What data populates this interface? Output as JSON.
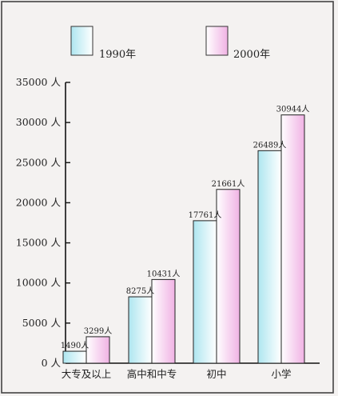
{
  "chart_data": {
    "type": "bar",
    "title": "",
    "xlabel": "",
    "ylabel": "",
    "categories": [
      "大专及以上",
      "高中和中专",
      "初中",
      "小学"
    ],
    "series": [
      {
        "name": "1990年",
        "values": [
          1490,
          8275,
          17761,
          26489
        ],
        "value_labels": [
          "1490人",
          "8275人",
          "17761人",
          "26489人"
        ],
        "color_start": "#aee6f0",
        "color_end": "#ffffff"
      },
      {
        "name": "2000年",
        "values": [
          3299,
          10431,
          21661,
          30944
        ],
        "value_labels": [
          "3299人",
          "10431人",
          "21661人",
          "30944人"
        ],
        "color_start": "#ffffff",
        "color_end": "#f0b2e4"
      }
    ],
    "ylim": [
      0,
      35000
    ],
    "yticks": [
      0,
      5000,
      10000,
      15000,
      20000,
      25000,
      30000,
      35000
    ],
    "ytick_labels": [
      "0 人",
      "5000 人",
      "10000 人",
      "15000 人",
      "20000 人",
      "25000 人",
      "30000 人",
      "35000 人"
    ],
    "grid": false,
    "legend_position": "top"
  }
}
